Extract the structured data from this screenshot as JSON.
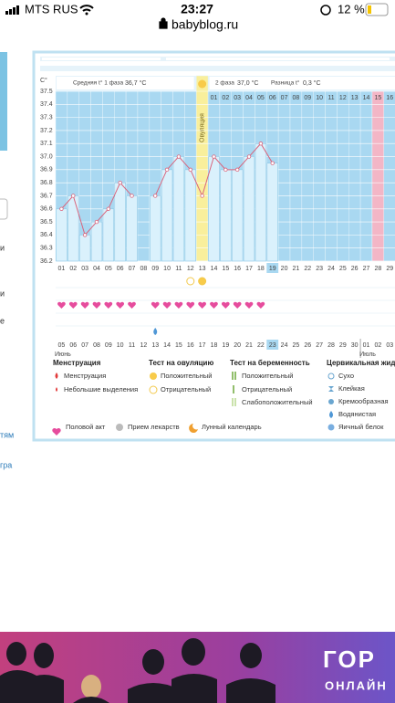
{
  "status_bar": {
    "carrier": "MTS RUS",
    "time": "23:27",
    "battery": "12 %"
  },
  "url": "babyblog.ru",
  "sidebar": [
    "и",
    "и",
    "е",
    "тям",
    "гра"
  ],
  "chart_data": {
    "type": "line",
    "y_unit": "C°",
    "categories": [
      "01",
      "02",
      "03",
      "04",
      "05",
      "06",
      "07",
      "08",
      "09",
      "10",
      "11",
      "12",
      "13",
      "14",
      "15",
      "16",
      "17",
      "18",
      "19",
      "20",
      "21",
      "22",
      "23",
      "24",
      "25",
      "26",
      "27",
      "28",
      "29"
    ],
    "values": [
      36.6,
      36.7,
      36.4,
      36.5,
      36.6,
      36.8,
      36.7,
      null,
      36.7,
      36.9,
      37.0,
      36.9,
      36.7,
      37.0,
      36.9,
      36.9,
      37.0,
      37.1,
      36.95,
      null,
      null,
      null,
      null,
      null,
      null,
      null,
      null,
      null,
      null
    ],
    "ylim": [
      36.2,
      37.5
    ],
    "yticks": [
      36.2,
      36.3,
      36.4,
      36.5,
      36.6,
      36.7,
      36.8,
      36.9,
      {
        "value": 37,
        "label": "37.0"
      },
      37.1,
      37.2,
      37.3,
      37.4,
      37.5
    ],
    "grid": true,
    "color": "#d9647c",
    "phase1": {
      "label": "Средняя t° 1 фаза",
      "value": "36,7 °C"
    },
    "phase2": {
      "label": "2 фаза",
      "value": "37,0 °C"
    },
    "difference": {
      "label": "Разница t°",
      "value": "0,3 °C"
    },
    "ovulation": {
      "label": "Овуляция",
      "day": "13"
    },
    "menstruation_days": [
      "28"
    ],
    "current_day": "19",
    "phase2_start": "14",
    "phase2_days": [
      "01",
      "02",
      "03",
      "04",
      "05",
      "06",
      "07",
      "08",
      "09",
      "10",
      "11",
      "12",
      "13",
      "14",
      "15",
      "16"
    ],
    "ovulation_tests": [
      {
        "day": "12",
        "result": "negative"
      },
      {
        "day": "13",
        "result": "positive"
      }
    ],
    "intercourse_days": [
      "01",
      "02",
      "03",
      "04",
      "05",
      "06",
      "07",
      "09",
      "10",
      "11",
      "12",
      "13",
      "14",
      "15",
      "16",
      "17",
      "18"
    ],
    "cervical": [
      {
        "day": "09",
        "kind": "watery"
      }
    ],
    "dates": [
      {
        "day": "05",
        "month": "Июнь"
      },
      {
        "day": "06",
        "red": true
      },
      {
        "day": "07",
        "red": true
      },
      {
        "day": "08"
      },
      {
        "day": "09"
      },
      {
        "day": "10"
      },
      {
        "day": "11"
      },
      {
        "day": "12"
      },
      {
        "day": "13",
        "red": true
      },
      {
        "day": "14",
        "red": true
      },
      {
        "day": "15"
      },
      {
        "day": "16"
      },
      {
        "day": "17"
      },
      {
        "day": "18"
      },
      {
        "day": "19"
      },
      {
        "day": "20",
        "red": true
      },
      {
        "day": "21",
        "red": true
      },
      {
        "day": "22"
      },
      {
        "day": "23",
        "current": true
      },
      {
        "day": "24"
      },
      {
        "day": "25"
      },
      {
        "day": "26"
      },
      {
        "day": "27",
        "red": true
      },
      {
        "day": "28",
        "red": true
      },
      {
        "day": "29"
      },
      {
        "day": "30"
      },
      {
        "day": "01",
        "month": "Июль"
      },
      {
        "day": "02"
      },
      {
        "day": "03"
      }
    ]
  },
  "legend": {
    "menstruation": {
      "title": "Менструация",
      "items": [
        "Менструация",
        "Небольшие выделения"
      ]
    },
    "ovulation_test": {
      "title": "Тест на овуляцию",
      "items": [
        "Положительный",
        "Отрицательный"
      ]
    },
    "pregnancy_test": {
      "title": "Тест на беременность",
      "items": [
        "Положительный",
        "Отрицательный",
        "Слабоположительный"
      ]
    },
    "cervical": {
      "title": "Цервикальная жидко",
      "items": [
        "Сухо",
        "Клейкая",
        "Кремообразная",
        "Водянистая",
        "Яичный белок"
      ]
    },
    "other": [
      "Половой акт",
      "Прием лекарств",
      "Лунный календарь"
    ]
  },
  "banner": {
    "line1": "ГОР",
    "line2": "ОНЛАЙН"
  }
}
